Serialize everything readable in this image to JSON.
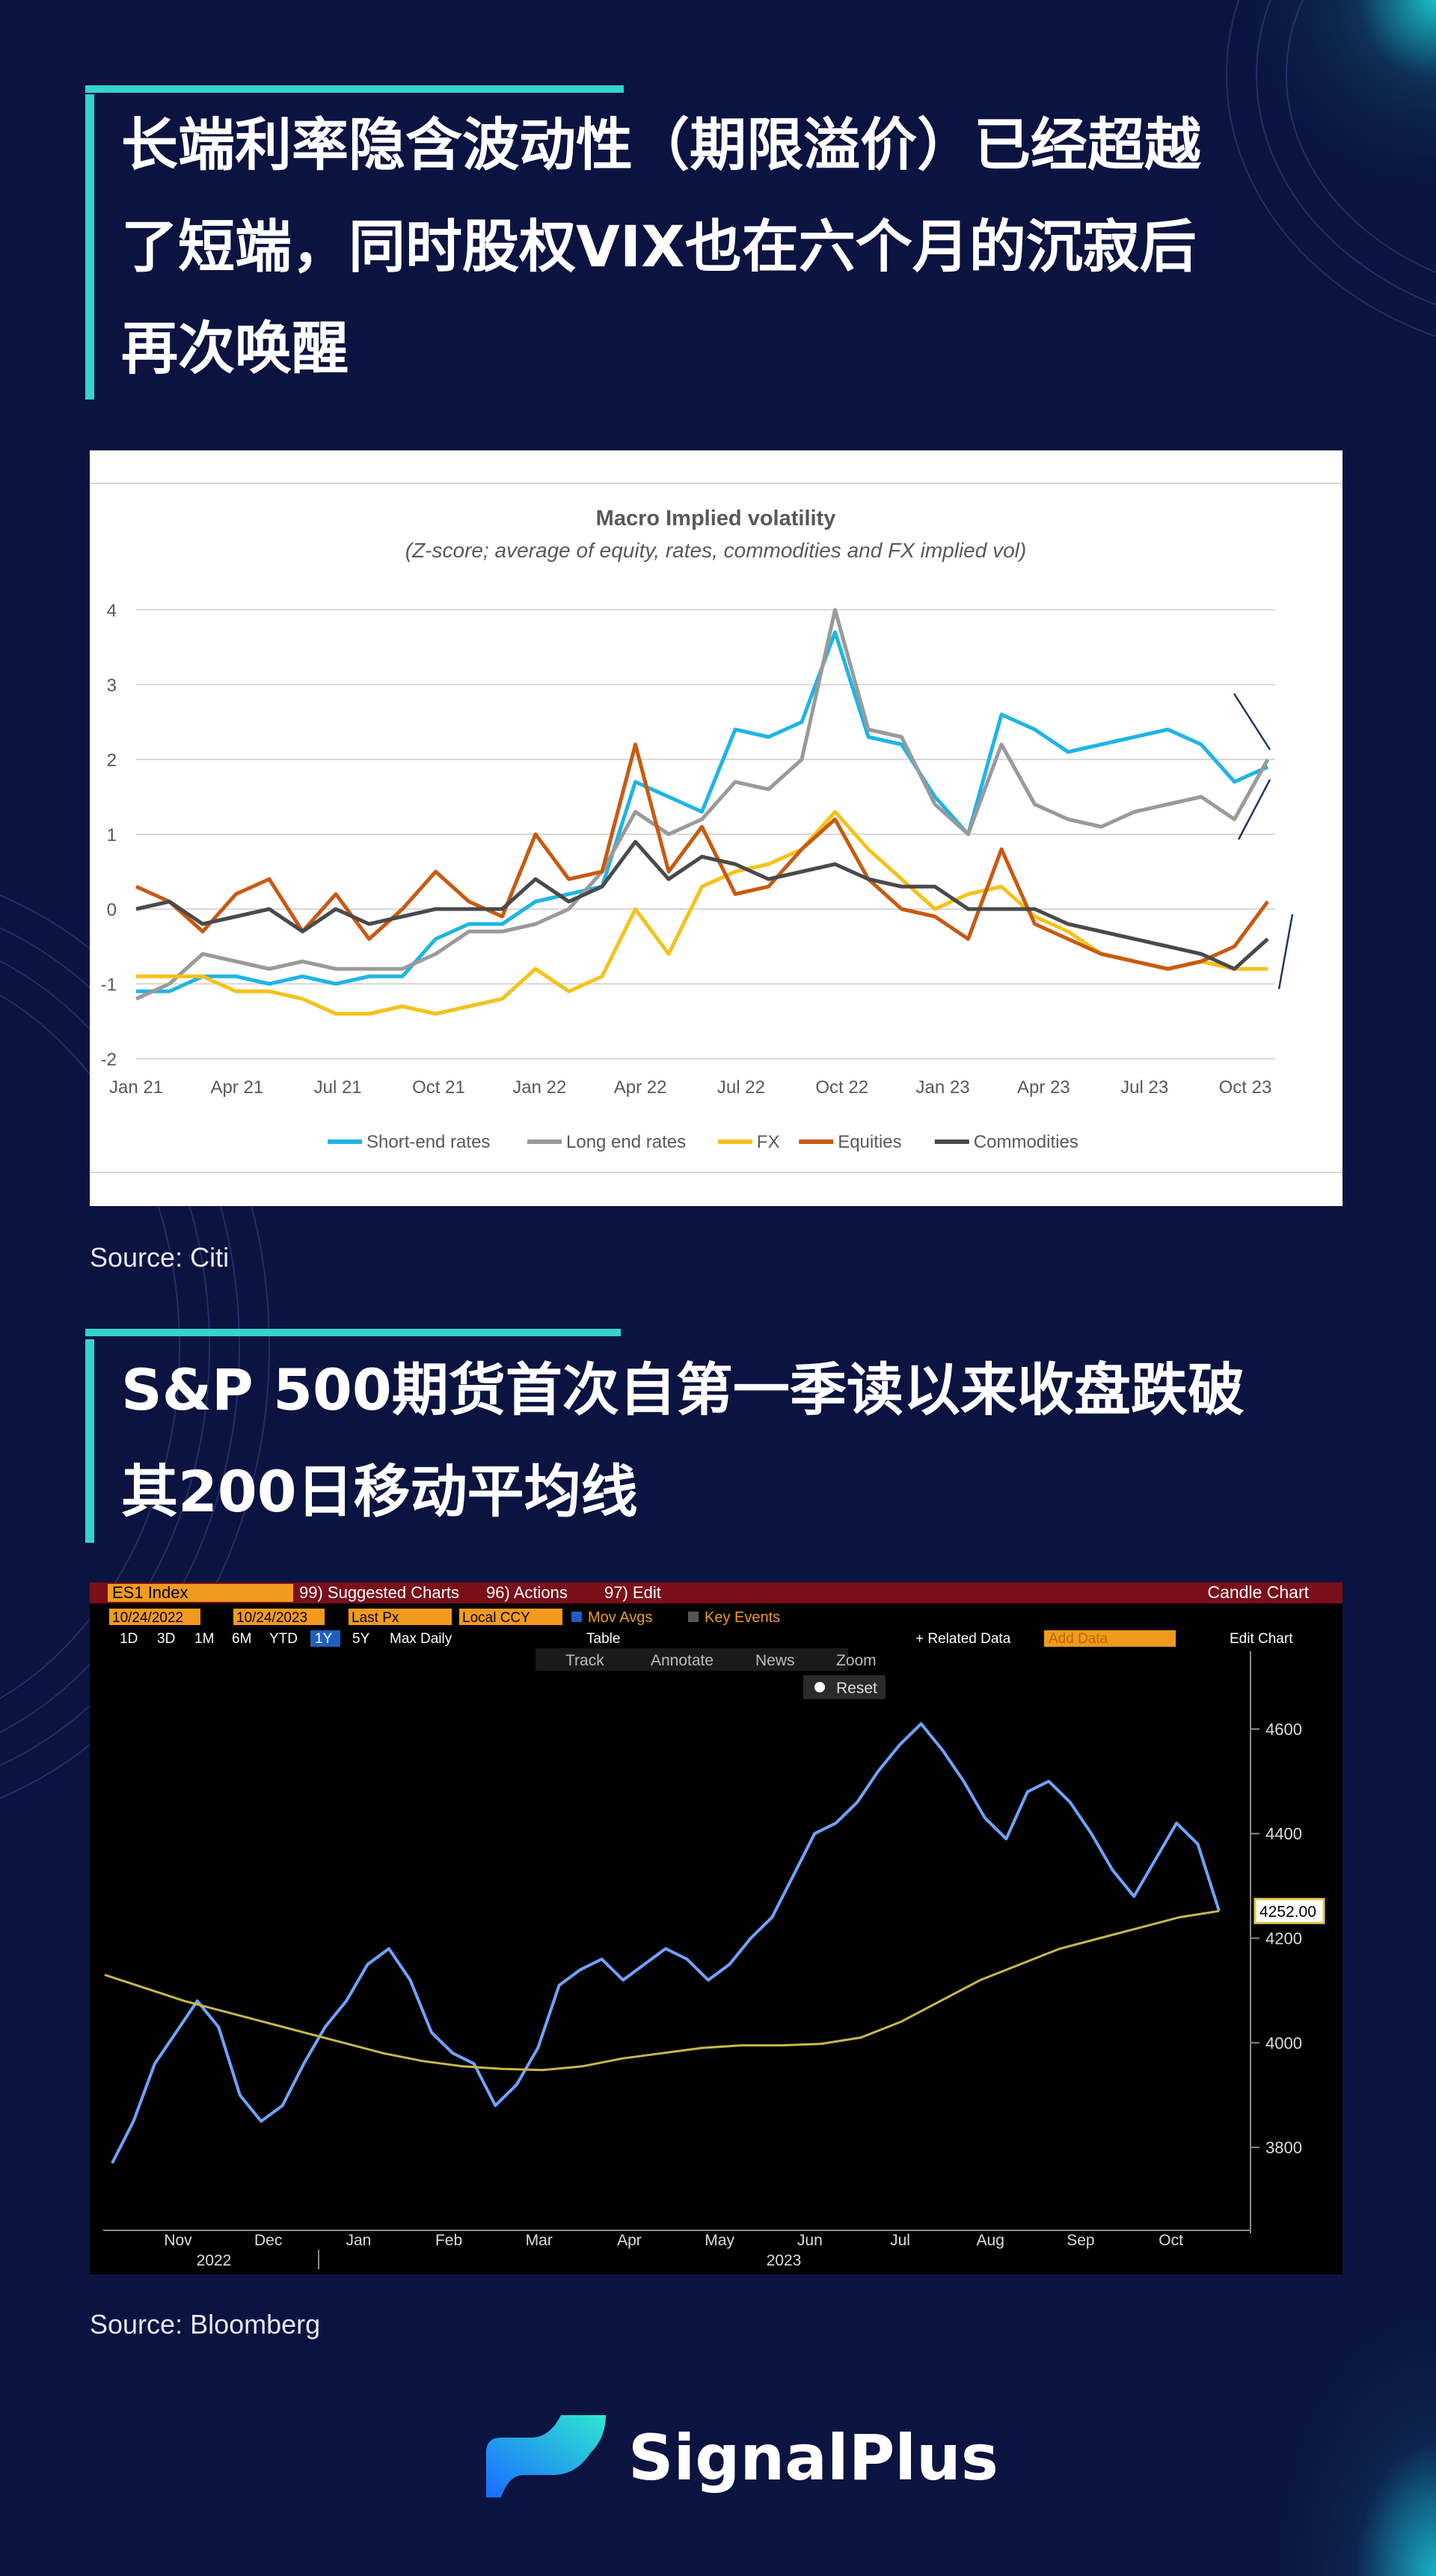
{
  "section1": {
    "heading_lines": [
      "长端利率隐含波动性（期限溢价）已经超越",
      "了短端，同时股权VIX也在六个月的沉寂后",
      "再次唤醒"
    ],
    "source": "Source: Citi"
  },
  "section2": {
    "heading_lines": [
      "S&P 500期货首次自第一季读以来收盘跌破",
      "其200日移动平均线"
    ],
    "source": "Source: Bloomberg"
  },
  "brand": {
    "name": "SignalPlus"
  },
  "colors": {
    "accent": "#35d3cf",
    "background": "#0b1340",
    "short_end": "#1fb4e6",
    "long_end": "#9a9a9a",
    "fx": "#f5c21b",
    "equities": "#c85a12",
    "commodities": "#4a4a4a"
  },
  "chart_data": [
    {
      "type": "line",
      "title": "Macro Implied volatility",
      "subtitle": "(Z-score; average of equity, rates, commodities and FX implied vol)",
      "x_ticks": [
        "Jan 21",
        "Apr 21",
        "Jul 21",
        "Oct 21",
        "Jan 22",
        "Apr 22",
        "Jul 22",
        "Oct 22",
        "Jan 23",
        "Apr 23",
        "Jul 23",
        "Oct 23"
      ],
      "ylim": [
        -2,
        4
      ],
      "y_ticks": [
        -2,
        -1,
        0,
        1,
        2,
        3,
        4
      ],
      "legend_position": "bottom",
      "x": [
        "Jan 21",
        "Feb 21",
        "Mar 21",
        "Apr 21",
        "May 21",
        "Jun 21",
        "Jul 21",
        "Aug 21",
        "Sep 21",
        "Oct 21",
        "Nov 21",
        "Dec 21",
        "Jan 22",
        "Feb 22",
        "Mar 22",
        "Apr 22",
        "May 22",
        "Jun 22",
        "Jul 22",
        "Aug 22",
        "Sep 22",
        "Oct 22",
        "Nov 22",
        "Dec 22",
        "Jan 23",
        "Feb 23",
        "Mar 23",
        "Apr 23",
        "May 23",
        "Jun 23",
        "Jul 23",
        "Aug 23",
        "Sep 23",
        "Oct 23",
        "Oct 23 end"
      ],
      "series": [
        {
          "name": "Short-end rates",
          "color": "#1fb4e6",
          "values": [
            -1.1,
            -1.1,
            -0.9,
            -0.9,
            -1.0,
            -0.9,
            -1.0,
            -0.9,
            -0.9,
            -0.4,
            -0.2,
            -0.2,
            0.1,
            0.2,
            0.3,
            1.7,
            1.5,
            1.3,
            2.4,
            2.3,
            2.5,
            3.7,
            2.3,
            2.2,
            1.5,
            1.0,
            2.6,
            2.4,
            2.1,
            2.2,
            2.3,
            2.4,
            2.2,
            1.7,
            1.9
          ]
        },
        {
          "name": "Long end rates",
          "color": "#9a9a9a",
          "values": [
            -1.2,
            -1.0,
            -0.6,
            -0.7,
            -0.8,
            -0.7,
            -0.8,
            -0.8,
            -0.8,
            -0.6,
            -0.3,
            -0.3,
            -0.2,
            0.0,
            0.5,
            1.3,
            1.0,
            1.2,
            1.7,
            1.6,
            2.0,
            4.0,
            2.4,
            2.3,
            1.4,
            1.0,
            2.2,
            1.4,
            1.2,
            1.1,
            1.3,
            1.4,
            1.5,
            1.2,
            2.0
          ]
        },
        {
          "name": "FX",
          "color": "#f5c21b",
          "values": [
            -0.9,
            -0.9,
            -0.9,
            -1.1,
            -1.1,
            -1.2,
            -1.4,
            -1.4,
            -1.3,
            -1.4,
            -1.3,
            -1.2,
            -0.8,
            -1.1,
            -0.9,
            0.0,
            -0.6,
            0.3,
            0.5,
            0.6,
            0.8,
            1.3,
            0.8,
            0.4,
            0.0,
            0.2,
            0.3,
            -0.1,
            -0.3,
            -0.6,
            -0.7,
            -0.8,
            -0.7,
            -0.8,
            -0.8
          ]
        },
        {
          "name": "Equities",
          "color": "#c85a12",
          "values": [
            0.3,
            0.1,
            -0.3,
            0.2,
            0.4,
            -0.3,
            0.2,
            -0.4,
            0.0,
            0.5,
            0.1,
            -0.1,
            1.0,
            0.4,
            0.5,
            2.2,
            0.5,
            1.1,
            0.2,
            0.3,
            0.8,
            1.2,
            0.4,
            0.0,
            -0.1,
            -0.4,
            0.8,
            -0.2,
            -0.4,
            -0.6,
            -0.7,
            -0.8,
            -0.7,
            -0.5,
            0.1
          ]
        },
        {
          "name": "Commodities",
          "color": "#4a4a4a",
          "values": [
            0.0,
            0.1,
            -0.2,
            -0.1,
            0.0,
            -0.3,
            0.0,
            -0.2,
            -0.1,
            0.0,
            0.0,
            0.0,
            0.4,
            0.1,
            0.3,
            0.9,
            0.4,
            0.7,
            0.6,
            0.4,
            0.5,
            0.6,
            0.4,
            0.3,
            0.3,
            0.0,
            0.0,
            0.0,
            -0.2,
            -0.3,
            -0.4,
            -0.5,
            -0.6,
            -0.8,
            -0.4
          ]
        }
      ]
    },
    {
      "type": "line",
      "title": "",
      "toolbar": {
        "ticker": "ES1 Index",
        "suggested": "99) Suggested Charts",
        "actions": "96) Actions",
        "edit": "97) Edit",
        "mode": "Candle Chart",
        "date_from": "10/24/2022",
        "date_to": "10/24/2023",
        "field": "Last Px",
        "currency": "Local CCY",
        "mov_avgs": "Mov Avgs",
        "key_events": "Key Events",
        "periods": [
          "1D",
          "3D",
          "1M",
          "6M",
          "YTD",
          "1Y",
          "5Y",
          "Max"
        ],
        "selected_period": "1Y",
        "frequency": "Daily",
        "table": "Table",
        "related": "+ Related Data",
        "add_data": "Add Data",
        "edit_chart": "Edit Chart",
        "track": "Track",
        "annotate": "Annotate",
        "news": "News",
        "zoom": "Zoom",
        "reset": "Reset"
      },
      "last_price_label": "4252.00",
      "x_ticks": [
        "Nov",
        "Dec",
        "Jan",
        "Feb",
        "Mar",
        "Apr",
        "May",
        "Jun",
        "Jul",
        "Aug",
        "Sep",
        "Oct"
      ],
      "x_year_labels": [
        "2022",
        "2023"
      ],
      "ylim": [
        3650,
        4680
      ],
      "y_ticks": [
        3800,
        4000,
        4200,
        4400,
        4600
      ],
      "series": [
        {
          "name": "ES1 Index",
          "color": "#6fa3ff",
          "values": [
            3770,
            3850,
            3960,
            4020,
            4080,
            4030,
            3900,
            3850,
            3880,
            3960,
            4030,
            4080,
            4150,
            4180,
            4120,
            4020,
            3980,
            3960,
            3880,
            3920,
            3990,
            4110,
            4140,
            4160,
            4120,
            4150,
            4180,
            4160,
            4120,
            4150,
            4200,
            4240,
            4320,
            4400,
            4420,
            4460,
            4520,
            4570,
            4610,
            4560,
            4500,
            4430,
            4390,
            4480,
            4500,
            4460,
            4400,
            4330,
            4280,
            4350,
            4420,
            4380,
            4252
          ]
        },
        {
          "name": "Mov Avgs",
          "color": "#c9b84a",
          "values": [
            4130,
            4105,
            4080,
            4060,
            4040,
            4020,
            4000,
            3980,
            3965,
            3955,
            3950,
            3948,
            3955,
            3970,
            3980,
            3990,
            3995,
            3995,
            3998,
            4010,
            4040,
            4080,
            4120,
            4150,
            4180,
            4200,
            4220,
            4240,
            4252
          ]
        }
      ]
    }
  ]
}
